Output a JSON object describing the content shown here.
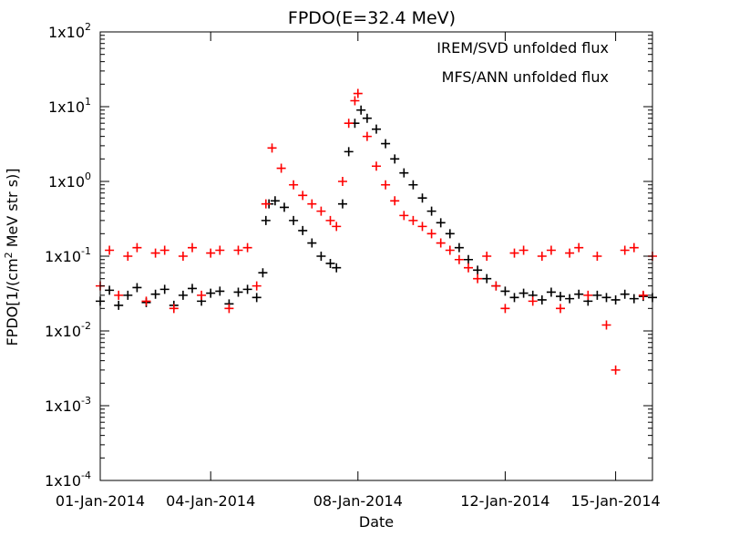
{
  "chart_data": {
    "type": "scatter",
    "title": "FPDO(E=32.4 MeV)",
    "xlabel": "Date",
    "ylabel_parts": {
      "prefix": "FPDO[1/(cm",
      "exp": "2",
      "suffix": " MeV str s)]"
    },
    "xlim": [
      "2014-01-01",
      "2014-01-16"
    ],
    "x_ticks": [
      "2014-01-01",
      "2014-01-04",
      "2014-01-08",
      "2014-01-12",
      "2014-01-15"
    ],
    "x_tick_labels": [
      "01-Jan-2014",
      "04-Jan-2014",
      "08-Jan-2014",
      "12-Jan-2014",
      "15-Jan-2014"
    ],
    "y_scale": "log",
    "ylim": [
      0.0001,
      100
    ],
    "y_ticks": [
      {
        "value": 100,
        "base": "1x10",
        "exp": "2"
      },
      {
        "value": 10,
        "base": "1x10",
        "exp": "1"
      },
      {
        "value": 1,
        "base": "1x10",
        "exp": "0"
      },
      {
        "value": 0.1,
        "base": "1x10",
        "exp": "-1"
      },
      {
        "value": 0.01,
        "base": "1x10",
        "exp": "-2"
      },
      {
        "value": 0.001,
        "base": "1x10",
        "exp": "-3"
      },
      {
        "value": 0.0001,
        "base": "1x10",
        "exp": "-4"
      }
    ],
    "legend_position": "top-right",
    "marker": "plus",
    "series": [
      {
        "name": "IREM/SVD unfolded flux",
        "color": "#000000",
        "points": [
          [
            "2014-01-01 00:00",
            0.025
          ],
          [
            "2014-01-01 06:00",
            0.035
          ],
          [
            "2014-01-01 12:00",
            0.022
          ],
          [
            "2014-01-01 18:00",
            0.03
          ],
          [
            "2014-01-02 00:00",
            0.038
          ],
          [
            "2014-01-02 06:00",
            0.024
          ],
          [
            "2014-01-02 12:00",
            0.031
          ],
          [
            "2014-01-02 18:00",
            0.036
          ],
          [
            "2014-01-03 00:00",
            0.022
          ],
          [
            "2014-01-03 06:00",
            0.03
          ],
          [
            "2014-01-03 12:00",
            0.037
          ],
          [
            "2014-01-03 18:00",
            0.025
          ],
          [
            "2014-01-04 00:00",
            0.032
          ],
          [
            "2014-01-04 06:00",
            0.034
          ],
          [
            "2014-01-04 12:00",
            0.023
          ],
          [
            "2014-01-04 18:00",
            0.033
          ],
          [
            "2014-01-05 00:00",
            0.036
          ],
          [
            "2014-01-05 06:00",
            0.028
          ],
          [
            "2014-01-05 10:00",
            0.06
          ],
          [
            "2014-01-05 12:00",
            0.3
          ],
          [
            "2014-01-05 14:00",
            0.5
          ],
          [
            "2014-01-05 18:00",
            0.55
          ],
          [
            "2014-01-06 00:00",
            0.45
          ],
          [
            "2014-01-06 06:00",
            0.3
          ],
          [
            "2014-01-06 12:00",
            0.22
          ],
          [
            "2014-01-06 18:00",
            0.15
          ],
          [
            "2014-01-07 00:00",
            0.1
          ],
          [
            "2014-01-07 06:00",
            0.08
          ],
          [
            "2014-01-07 10:00",
            0.07
          ],
          [
            "2014-01-07 14:00",
            0.5
          ],
          [
            "2014-01-07 18:00",
            2.5
          ],
          [
            "2014-01-07 22:00",
            6.0
          ],
          [
            "2014-01-08 02:00",
            9.0
          ],
          [
            "2014-01-08 06:00",
            7.0
          ],
          [
            "2014-01-08 12:00",
            5.0
          ],
          [
            "2014-01-08 18:00",
            3.2
          ],
          [
            "2014-01-09 00:00",
            2.0
          ],
          [
            "2014-01-09 06:00",
            1.3
          ],
          [
            "2014-01-09 12:00",
            0.9
          ],
          [
            "2014-01-09 18:00",
            0.6
          ],
          [
            "2014-01-10 00:00",
            0.4
          ],
          [
            "2014-01-10 06:00",
            0.28
          ],
          [
            "2014-01-10 12:00",
            0.2
          ],
          [
            "2014-01-10 18:00",
            0.13
          ],
          [
            "2014-01-11 00:00",
            0.09
          ],
          [
            "2014-01-11 06:00",
            0.065
          ],
          [
            "2014-01-11 12:00",
            0.05
          ],
          [
            "2014-01-11 18:00",
            0.04
          ],
          [
            "2014-01-12 00:00",
            0.034
          ],
          [
            "2014-01-12 06:00",
            0.028
          ],
          [
            "2014-01-12 12:00",
            0.032
          ],
          [
            "2014-01-12 18:00",
            0.03
          ],
          [
            "2014-01-13 00:00",
            0.026
          ],
          [
            "2014-01-13 06:00",
            0.033
          ],
          [
            "2014-01-13 12:00",
            0.029
          ],
          [
            "2014-01-13 18:00",
            0.027
          ],
          [
            "2014-01-14 00:00",
            0.031
          ],
          [
            "2014-01-14 06:00",
            0.025
          ],
          [
            "2014-01-14 12:00",
            0.03
          ],
          [
            "2014-01-14 18:00",
            0.028
          ],
          [
            "2014-01-15 00:00",
            0.026
          ],
          [
            "2014-01-15 06:00",
            0.031
          ],
          [
            "2014-01-15 12:00",
            0.027
          ],
          [
            "2014-01-15 18:00",
            0.029
          ],
          [
            "2014-01-16 00:00",
            0.028
          ]
        ]
      },
      {
        "name": "MFS/ANN unfolded flux",
        "color": "#ff0000",
        "points": [
          [
            "2014-01-01 00:00",
            0.04
          ],
          [
            "2014-01-01 06:00",
            0.12
          ],
          [
            "2014-01-01 12:00",
            0.03
          ],
          [
            "2014-01-01 18:00",
            0.1
          ],
          [
            "2014-01-02 00:00",
            0.13
          ],
          [
            "2014-01-02 06:00",
            0.025
          ],
          [
            "2014-01-02 12:00",
            0.11
          ],
          [
            "2014-01-02 18:00",
            0.12
          ],
          [
            "2014-01-03 00:00",
            0.02
          ],
          [
            "2014-01-03 06:00",
            0.1
          ],
          [
            "2014-01-03 12:00",
            0.13
          ],
          [
            "2014-01-03 18:00",
            0.03
          ],
          [
            "2014-01-04 00:00",
            0.11
          ],
          [
            "2014-01-04 06:00",
            0.12
          ],
          [
            "2014-01-04 12:00",
            0.02
          ],
          [
            "2014-01-04 18:00",
            0.12
          ],
          [
            "2014-01-05 00:00",
            0.13
          ],
          [
            "2014-01-05 06:00",
            0.04
          ],
          [
            "2014-01-05 12:00",
            0.5
          ],
          [
            "2014-01-05 16:00",
            2.8
          ],
          [
            "2014-01-05 22:00",
            1.5
          ],
          [
            "2014-01-06 06:00",
            0.9
          ],
          [
            "2014-01-06 12:00",
            0.65
          ],
          [
            "2014-01-06 18:00",
            0.5
          ],
          [
            "2014-01-07 00:00",
            0.4
          ],
          [
            "2014-01-07 06:00",
            0.3
          ],
          [
            "2014-01-07 10:00",
            0.25
          ],
          [
            "2014-01-07 14:00",
            1.0
          ],
          [
            "2014-01-07 18:00",
            6.0
          ],
          [
            "2014-01-07 22:00",
            12.0
          ],
          [
            "2014-01-08 00:00",
            15.0
          ],
          [
            "2014-01-08 06:00",
            4.0
          ],
          [
            "2014-01-08 12:00",
            1.6
          ],
          [
            "2014-01-08 18:00",
            0.9
          ],
          [
            "2014-01-09 00:00",
            0.55
          ],
          [
            "2014-01-09 06:00",
            0.35
          ],
          [
            "2014-01-09 12:00",
            0.3
          ],
          [
            "2014-01-09 18:00",
            0.25
          ],
          [
            "2014-01-10 00:00",
            0.2
          ],
          [
            "2014-01-10 06:00",
            0.15
          ],
          [
            "2014-01-10 12:00",
            0.12
          ],
          [
            "2014-01-10 18:00",
            0.09
          ],
          [
            "2014-01-11 00:00",
            0.07
          ],
          [
            "2014-01-11 06:00",
            0.05
          ],
          [
            "2014-01-11 12:00",
            0.1
          ],
          [
            "2014-01-11 18:00",
            0.04
          ],
          [
            "2014-01-12 00:00",
            0.02
          ],
          [
            "2014-01-12 06:00",
            0.11
          ],
          [
            "2014-01-12 12:00",
            0.12
          ],
          [
            "2014-01-12 18:00",
            0.025
          ],
          [
            "2014-01-13 00:00",
            0.1
          ],
          [
            "2014-01-13 06:00",
            0.12
          ],
          [
            "2014-01-13 12:00",
            0.02
          ],
          [
            "2014-01-13 18:00",
            0.11
          ],
          [
            "2014-01-14 00:00",
            0.13
          ],
          [
            "2014-01-14 06:00",
            0.03
          ],
          [
            "2014-01-14 12:00",
            0.1
          ],
          [
            "2014-01-14 18:00",
            0.012
          ],
          [
            "2014-01-15 00:00",
            0.003
          ],
          [
            "2014-01-15 06:00",
            0.12
          ],
          [
            "2014-01-15 12:00",
            0.13
          ],
          [
            "2014-01-15 18:00",
            0.03
          ],
          [
            "2014-01-16 00:00",
            0.1
          ]
        ]
      }
    ]
  }
}
